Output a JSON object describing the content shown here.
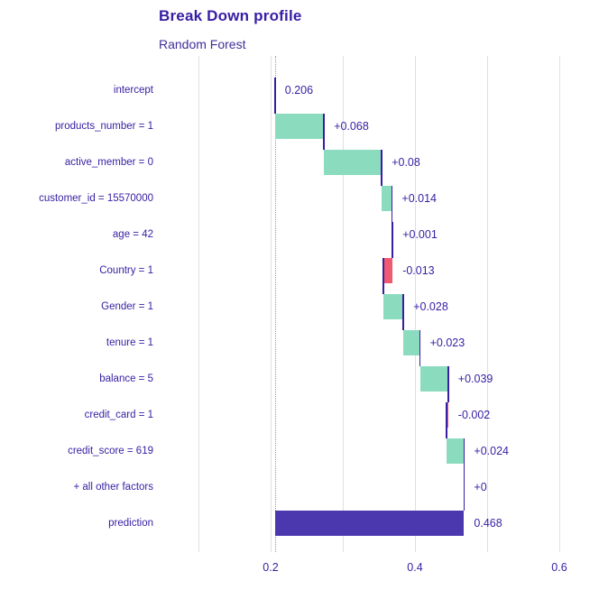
{
  "header": {
    "title": "Break Down profile",
    "subtitle": "Random Forest"
  },
  "chart_data": {
    "type": "waterfall",
    "title": "Break Down profile",
    "subtitle": "Random Forest",
    "xlabel": "",
    "ylabel": "",
    "xlim": [
      0.056,
      0.645
    ],
    "baseline_value": 0.206,
    "prediction_value": 0.468,
    "grid": "vertical-only",
    "x_axis": {
      "tick_values": [
        0.2,
        0.4,
        0.6
      ],
      "tick_labels": [
        "0.2",
        "0.4",
        "0.6"
      ],
      "gridline_values": [
        0.1,
        0.2,
        0.3,
        0.4,
        0.5,
        0.6
      ]
    },
    "colors": {
      "positive": "#8bdcbe",
      "negative": "#f05a71",
      "prediction": "#4b38ae",
      "intercept_line": "#371ea3",
      "connector": "#371ea3",
      "text": "#371ea3",
      "gridline": "#e0e0e0",
      "baseline_dotted": "#9b9b9b"
    },
    "rows": [
      {
        "label": "intercept",
        "kind": "intercept",
        "contribution": 0.206,
        "start": 0.206,
        "end": 0.206,
        "value_label": "0.206"
      },
      {
        "label": "products_number = 1",
        "kind": "positive",
        "contribution": 0.068,
        "start": 0.206,
        "end": 0.274,
        "value_label": "+0.068"
      },
      {
        "label": "active_member = 0",
        "kind": "positive",
        "contribution": 0.08,
        "start": 0.274,
        "end": 0.354,
        "value_label": "+0.08"
      },
      {
        "label": "customer_id = 15570000",
        "kind": "positive",
        "contribution": 0.014,
        "start": 0.354,
        "end": 0.368,
        "value_label": "+0.014"
      },
      {
        "label": "age = 42",
        "kind": "positive",
        "contribution": 0.001,
        "start": 0.368,
        "end": 0.369,
        "value_label": "+0.001"
      },
      {
        "label": "Country = 1",
        "kind": "negative",
        "contribution": -0.013,
        "start": 0.369,
        "end": 0.356,
        "value_label": "-0.013"
      },
      {
        "label": "Gender = 1",
        "kind": "positive",
        "contribution": 0.028,
        "start": 0.356,
        "end": 0.384,
        "value_label": "+0.028"
      },
      {
        "label": "tenure = 1",
        "kind": "positive",
        "contribution": 0.023,
        "start": 0.384,
        "end": 0.407,
        "value_label": "+0.023"
      },
      {
        "label": "balance = 5",
        "kind": "positive",
        "contribution": 0.039,
        "start": 0.407,
        "end": 0.446,
        "value_label": "+0.039"
      },
      {
        "label": "credit_card = 1",
        "kind": "negative",
        "contribution": -0.002,
        "start": 0.446,
        "end": 0.444,
        "value_label": "-0.002"
      },
      {
        "label": "credit_score = 619",
        "kind": "positive",
        "contribution": 0.024,
        "start": 0.444,
        "end": 0.468,
        "value_label": "+0.024"
      },
      {
        "label": "+ all other factors",
        "kind": "positive",
        "contribution": 0,
        "start": 0.468,
        "end": 0.468,
        "value_label": "+0"
      },
      {
        "label": "prediction",
        "kind": "prediction",
        "contribution": 0.468,
        "start": 0.206,
        "end": 0.468,
        "value_label": "0.468"
      }
    ]
  }
}
